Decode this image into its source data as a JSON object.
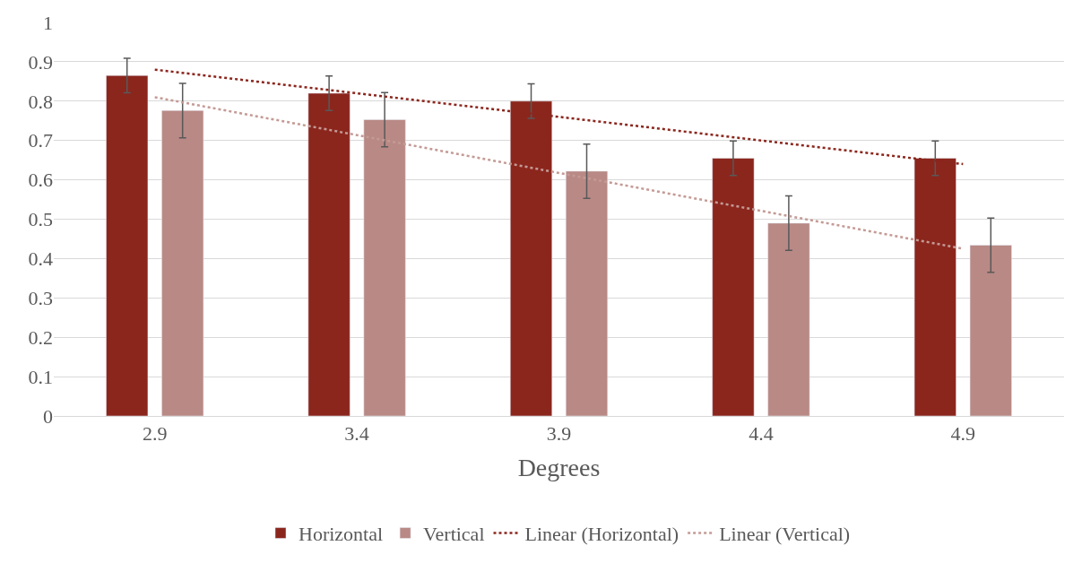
{
  "chart_data": {
    "type": "bar",
    "xlabel": "Degrees",
    "categories": [
      "2.9",
      "3.4",
      "3.9",
      "4.4",
      "4.9"
    ],
    "series": [
      {
        "name": "Horizontal",
        "color": "#8b261d",
        "values": [
          0.865,
          0.82,
          0.8,
          0.655,
          0.655
        ],
        "errors": [
          0.044,
          0.044,
          0.044,
          0.044,
          0.044
        ]
      },
      {
        "name": "Vertical",
        "color": "#b98985",
        "values": [
          0.776,
          0.753,
          0.622,
          0.49,
          0.434
        ],
        "errors": [
          0.069,
          0.069,
          0.069,
          0.069,
          0.069
        ]
      },
      {
        "name": "Linear (Horizontal)",
        "type": "line",
        "line_style": "dotted",
        "color": "#8b261d",
        "x": [
          "2.9",
          "4.9"
        ],
        "values": [
          0.88,
          0.64
        ]
      },
      {
        "name": "Linear (Vertical)",
        "type": "line",
        "line_style": "dotted",
        "color": "#c49a95",
        "x": [
          "2.9",
          "4.9"
        ],
        "values": [
          0.81,
          0.425
        ]
      }
    ],
    "ylim": [
      0,
      1
    ],
    "yticks": [
      0,
      0.1,
      0.2,
      0.3,
      0.4,
      0.5,
      0.6,
      0.7,
      0.8,
      0.9,
      1
    ],
    "grid": "y",
    "legend": "bottom",
    "marker": "none"
  }
}
